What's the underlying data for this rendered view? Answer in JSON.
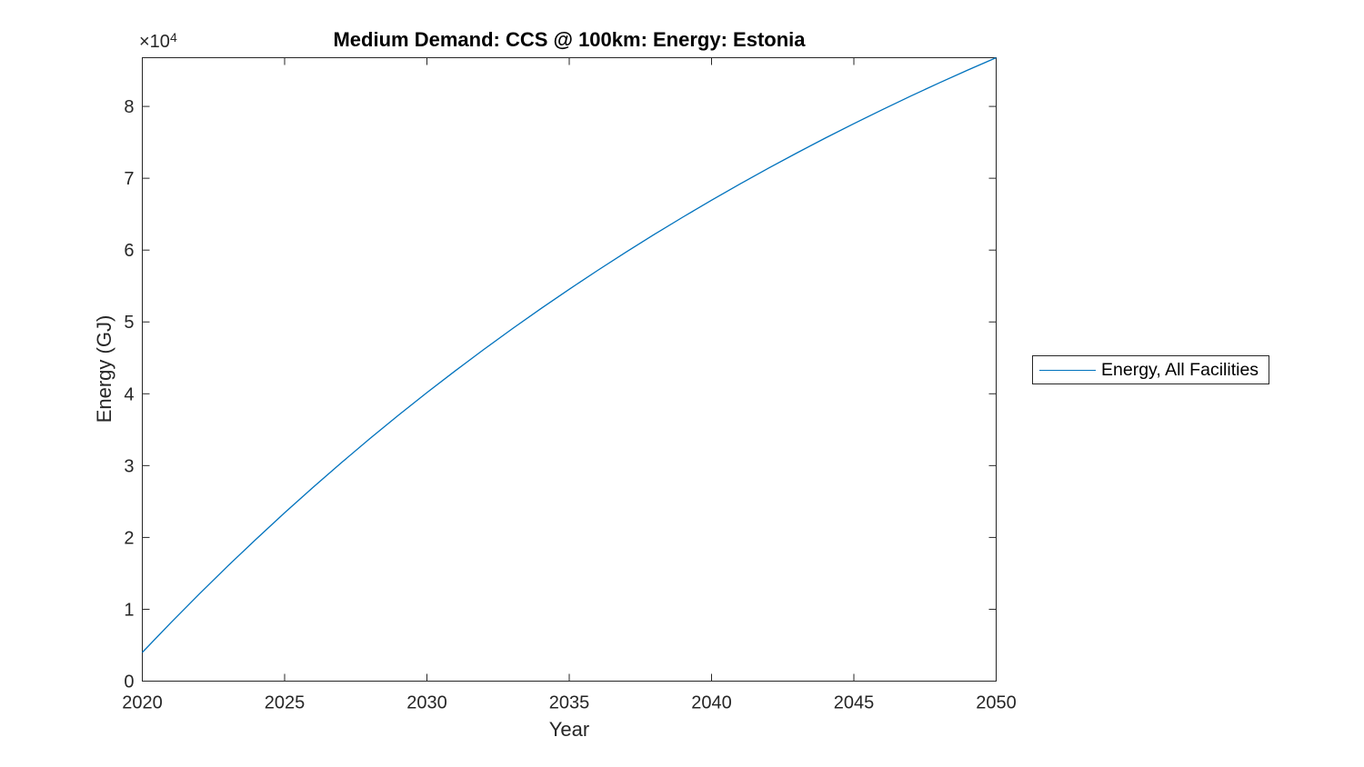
{
  "chart_data": {
    "type": "line",
    "title": "Medium Demand: CCS @ 100km: Energy: Estonia",
    "xlabel": "Year",
    "ylabel": "Energy (GJ)",
    "y_offset_label": {
      "base": "×10",
      "exponent": "4"
    },
    "xlim": [
      2020,
      2050
    ],
    "ylim": [
      0,
      86780
    ],
    "xticks": [
      2020,
      2025,
      2030,
      2035,
      2040,
      2045,
      2050
    ],
    "yticks": [
      0,
      10000,
      20000,
      30000,
      40000,
      50000,
      60000,
      70000,
      80000
    ],
    "ytick_labels": [
      "0",
      "1",
      "2",
      "3",
      "4",
      "5",
      "6",
      "7",
      "8"
    ],
    "grid": false,
    "box": true,
    "tick_direction": "in",
    "axis_color": "#262626",
    "line_color": "#0072BD",
    "legend": {
      "position": "right-outside",
      "entries": [
        {
          "label": "Energy, All Facilities",
          "color": "#0072BD"
        }
      ]
    },
    "series": [
      {
        "name": "Energy, All Facilities",
        "x": [
          2020,
          2021,
          2022,
          2023,
          2024,
          2025,
          2026,
          2027,
          2028,
          2029,
          2030,
          2031,
          2032,
          2033,
          2034,
          2035,
          2036,
          2037,
          2038,
          2039,
          2040,
          2041,
          2042,
          2043,
          2044,
          2045,
          2046,
          2047,
          2048,
          2049,
          2050
        ],
        "values": [
          4000,
          8120,
          12120,
          16010,
          19770,
          23430,
          26980,
          30420,
          33770,
          37010,
          40160,
          43210,
          46170,
          49050,
          51840,
          54550,
          57180,
          59730,
          62210,
          64610,
          66940,
          69200,
          71400,
          73530,
          75600,
          77600,
          79550,
          81440,
          83280,
          85060,
          86780
        ]
      }
    ]
  }
}
